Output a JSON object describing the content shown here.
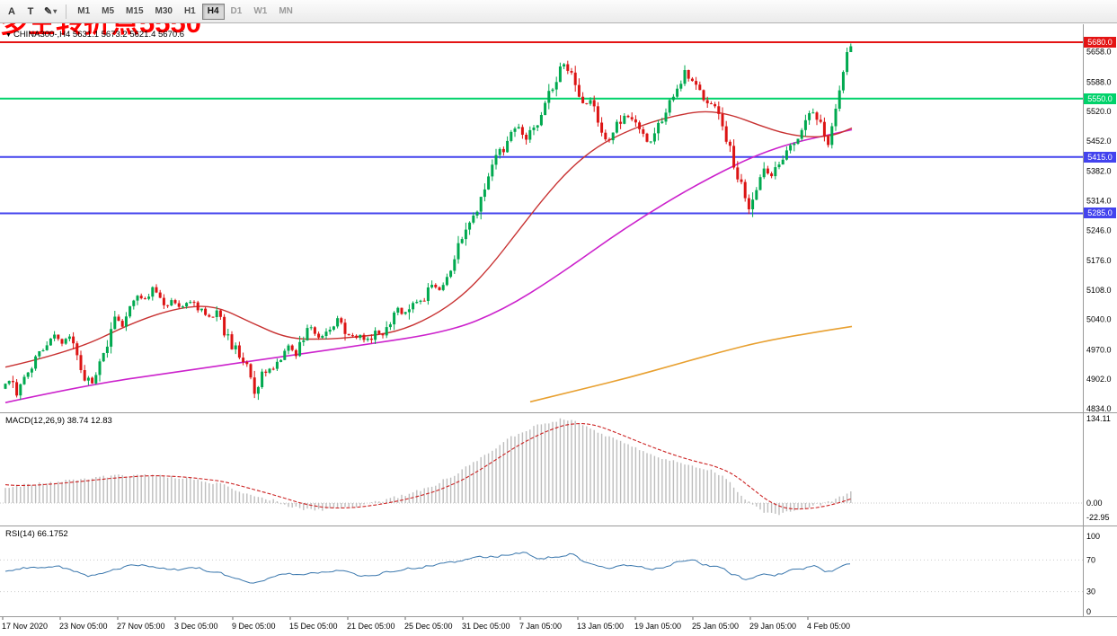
{
  "toolbar": {
    "buttons": [
      {
        "label": "A"
      },
      {
        "label": "T"
      },
      {
        "label": "✎",
        "caret": "▾"
      }
    ],
    "timeframes": [
      {
        "label": "M1",
        "active": false
      },
      {
        "label": "M5",
        "active": false
      },
      {
        "label": "M15",
        "active": false
      },
      {
        "label": "M30",
        "active": false
      },
      {
        "label": "H1",
        "active": false
      },
      {
        "label": "H4",
        "active": true
      },
      {
        "label": "D1",
        "active": false
      },
      {
        "label": "W1",
        "active": false
      },
      {
        "label": "MN",
        "active": false
      }
    ]
  },
  "chart": {
    "symbol_dropdown_icon": "▼",
    "symbol_line": "CHINA300-,H4 5631.1 5673.2 5621.4 5670.6",
    "annotation": {
      "text": "多空转折点5550",
      "color": "#ff0000"
    },
    "levels": [
      {
        "label": "5680.0",
        "price": 5680.0,
        "color": "#e41414",
        "width": 2
      },
      {
        "label": "5550.0",
        "price": 5550.0,
        "color": "#00d26a",
        "width": 2
      },
      {
        "label": "5415.0",
        "price": 5415.0,
        "color": "#4343ee",
        "width": 2
      },
      {
        "label": "5285.0",
        "price": 5285.0,
        "color": "#4343ee",
        "width": 2
      }
    ],
    "y_ticks": [
      "5658.0",
      "5588.0",
      "5520.0",
      "5452.0",
      "5382.0",
      "5314.0",
      "5246.0",
      "5176.0",
      "5108.0",
      "5040.0",
      "4970.0",
      "4902.0",
      "4834.0"
    ],
    "x_ticks": [
      "17 Nov 2020",
      "23 Nov 05:00",
      "27 Nov 05:00",
      "3 Dec 05:00",
      "9 Dec 05:00",
      "15 Dec 05:00",
      "21 Dec 05:00",
      "25 Dec 05:00",
      "31 Dec 05:00",
      "7 Jan 05:00",
      "13 Jan 05:00",
      "19 Jan 05:00",
      "25 Jan 05:00",
      "29 Jan 05:00",
      "4 Feb 05:00"
    ]
  },
  "indicators": {
    "macd": {
      "label": "MACD(12,26,9) 38.74 12.83",
      "y_ticks": [
        "134.11",
        "0.00",
        "-22.95"
      ]
    },
    "rsi": {
      "label": "RSI(14) 66.1752",
      "y_ticks": [
        "100",
        "70",
        "30",
        "0"
      ]
    }
  },
  "chart_data": {
    "type": "candlestick",
    "symbol": "CHINA300-",
    "timeframe": "H4",
    "current_bar": {
      "open": 5631.1,
      "high": 5673.2,
      "low": 5621.4,
      "close": 5670.6
    },
    "price_axis_range": [
      4834,
      5680
    ],
    "horizontal_levels": [
      5680,
      5550,
      5415,
      5285
    ],
    "colors": {
      "bull": "#00a94f",
      "bear": "#dc1414",
      "ma_fast": "#c83232",
      "ma_slow": "#cc22cc",
      "ma_long": "#e8a030",
      "macd_hist": "#bdbdbd",
      "macd_signal": "#cc2222",
      "rsi_line": "#3a77ad",
      "axis_text": "#000000",
      "grid": "#9a9a9a"
    },
    "price_path": [
      [
        6,
        4880
      ],
      [
        14,
        4908
      ],
      [
        22,
        4868
      ],
      [
        34,
        4915
      ],
      [
        46,
        4958
      ],
      [
        58,
        4988
      ],
      [
        66,
        5002
      ],
      [
        74,
        4986
      ],
      [
        82,
        4996
      ],
      [
        90,
        4948
      ],
      [
        98,
        4910
      ],
      [
        106,
        4893
      ],
      [
        116,
        4940
      ],
      [
        126,
        5000
      ],
      [
        134,
        5048
      ],
      [
        142,
        5025
      ],
      [
        150,
        5068
      ],
      [
        158,
        5092
      ],
      [
        166,
        5086
      ],
      [
        174,
        5106
      ],
      [
        182,
        5088
      ],
      [
        190,
        5074
      ],
      [
        198,
        5082
      ],
      [
        206,
        5070
      ],
      [
        214,
        5086
      ],
      [
        222,
        5072
      ],
      [
        230,
        5060
      ],
      [
        238,
        5042
      ],
      [
        246,
        5056
      ],
      [
        254,
        5012
      ],
      [
        262,
        4982
      ],
      [
        270,
        4962
      ],
      [
        278,
        4938
      ],
      [
        286,
        4872
      ],
      [
        294,
        4906
      ],
      [
        302,
        4926
      ],
      [
        310,
        4930
      ],
      [
        318,
        4956
      ],
      [
        326,
        4976
      ],
      [
        334,
        4960
      ],
      [
        342,
        4996
      ],
      [
        350,
        5022
      ],
      [
        358,
        5000
      ],
      [
        366,
        5012
      ],
      [
        374,
        5026
      ],
      [
        382,
        5042
      ],
      [
        390,
        5012
      ],
      [
        398,
        4996
      ],
      [
        406,
        5002
      ],
      [
        414,
        4990
      ],
      [
        422,
        5012
      ],
      [
        430,
        5002
      ],
      [
        438,
        5032
      ],
      [
        446,
        5062
      ],
      [
        454,
        5050
      ],
      [
        462,
        5086
      ],
      [
        470,
        5072
      ],
      [
        478,
        5096
      ],
      [
        486,
        5122
      ],
      [
        494,
        5112
      ],
      [
        502,
        5142
      ],
      [
        510,
        5182
      ],
      [
        518,
        5232
      ],
      [
        526,
        5272
      ],
      [
        534,
        5288
      ],
      [
        542,
        5332
      ],
      [
        550,
        5396
      ],
      [
        558,
        5442
      ],
      [
        566,
        5430
      ],
      [
        574,
        5472
      ],
      [
        582,
        5492
      ],
      [
        590,
        5452
      ],
      [
        598,
        5482
      ],
      [
        606,
        5512
      ],
      [
        614,
        5556
      ],
      [
        622,
        5592
      ],
      [
        630,
        5628
      ],
      [
        638,
        5612
      ],
      [
        646,
        5566
      ],
      [
        654,
        5532
      ],
      [
        662,
        5546
      ],
      [
        670,
        5496
      ],
      [
        678,
        5452
      ],
      [
        686,
        5462
      ],
      [
        694,
        5502
      ],
      [
        702,
        5512
      ],
      [
        710,
        5492
      ],
      [
        718,
        5470
      ],
      [
        726,
        5446
      ],
      [
        734,
        5472
      ],
      [
        742,
        5512
      ],
      [
        750,
        5546
      ],
      [
        758,
        5572
      ],
      [
        766,
        5606
      ],
      [
        774,
        5592
      ],
      [
        782,
        5562
      ],
      [
        790,
        5532
      ],
      [
        798,
        5536
      ],
      [
        806,
        5502
      ],
      [
        814,
        5452
      ],
      [
        822,
        5396
      ],
      [
        830,
        5346
      ],
      [
        838,
        5298
      ],
      [
        846,
        5352
      ],
      [
        854,
        5386
      ],
      [
        862,
        5372
      ],
      [
        870,
        5402
      ],
      [
        878,
        5422
      ],
      [
        886,
        5442
      ],
      [
        894,
        5472
      ],
      [
        902,
        5502
      ],
      [
        910,
        5526
      ],
      [
        918,
        5482
      ],
      [
        926,
        5452
      ],
      [
        934,
        5512
      ],
      [
        940,
        5592
      ],
      [
        946,
        5668
      ]
    ],
    "ma_fast_red": [
      [
        6,
        4930
      ],
      [
        80,
        4965
      ],
      [
        150,
        5035
      ],
      [
        200,
        5068
      ],
      [
        240,
        5072
      ],
      [
        280,
        5032
      ],
      [
        320,
        4996
      ],
      [
        360,
        4994
      ],
      [
        400,
        5000
      ],
      [
        440,
        5010
      ],
      [
        480,
        5045
      ],
      [
        515,
        5095
      ],
      [
        545,
        5160
      ],
      [
        575,
        5240
      ],
      [
        605,
        5320
      ],
      [
        635,
        5390
      ],
      [
        665,
        5440
      ],
      [
        695,
        5472
      ],
      [
        725,
        5496
      ],
      [
        755,
        5512
      ],
      [
        785,
        5522
      ],
      [
        815,
        5512
      ],
      [
        845,
        5488
      ],
      [
        875,
        5468
      ],
      [
        905,
        5460
      ],
      [
        930,
        5466
      ],
      [
        948,
        5482
      ]
    ],
    "ma_slow_magenta": [
      [
        6,
        4848
      ],
      [
        100,
        4890
      ],
      [
        200,
        4920
      ],
      [
        300,
        4950
      ],
      [
        400,
        4980
      ],
      [
        500,
        5012
      ],
      [
        560,
        5062
      ],
      [
        620,
        5140
      ],
      [
        700,
        5258
      ],
      [
        780,
        5358
      ],
      [
        860,
        5438
      ],
      [
        948,
        5478
      ]
    ],
    "ma_long_orange": [
      [
        590,
        4850
      ],
      [
        650,
        4880
      ],
      [
        700,
        4906
      ],
      [
        750,
        4935
      ],
      [
        800,
        4964
      ],
      [
        850,
        4990
      ],
      [
        900,
        5008
      ],
      [
        948,
        5024
      ]
    ],
    "macd_main": [
      [
        6,
        25
      ],
      [
        40,
        30
      ],
      [
        80,
        36
      ],
      [
        120,
        42
      ],
      [
        160,
        45
      ],
      [
        200,
        40
      ],
      [
        240,
        32
      ],
      [
        270,
        18
      ],
      [
        300,
        6
      ],
      [
        330,
        -8
      ],
      [
        360,
        -11
      ],
      [
        390,
        -6
      ],
      [
        420,
        2
      ],
      [
        450,
        12
      ],
      [
        480,
        26
      ],
      [
        510,
        48
      ],
      [
        540,
        78
      ],
      [
        570,
        106
      ],
      [
        600,
        124
      ],
      [
        625,
        133
      ],
      [
        650,
        126
      ],
      [
        680,
        103
      ],
      [
        710,
        85
      ],
      [
        740,
        70
      ],
      [
        760,
        62
      ],
      [
        790,
        53
      ],
      [
        810,
        36
      ],
      [
        830,
        6
      ],
      [
        850,
        -16
      ],
      [
        870,
        -18
      ],
      [
        890,
        -9
      ],
      [
        910,
        -3
      ],
      [
        930,
        7
      ],
      [
        946,
        17
      ]
    ],
    "rsi": [
      [
        6,
        55
      ],
      [
        30,
        60
      ],
      [
        60,
        63
      ],
      [
        80,
        58
      ],
      [
        100,
        50
      ],
      [
        120,
        55
      ],
      [
        140,
        62
      ],
      [
        160,
        64
      ],
      [
        180,
        60
      ],
      [
        200,
        58
      ],
      [
        220,
        60
      ],
      [
        240,
        55
      ],
      [
        260,
        48
      ],
      [
        280,
        42
      ],
      [
        300,
        47
      ],
      [
        320,
        52
      ],
      [
        340,
        50
      ],
      [
        360,
        55
      ],
      [
        380,
        58
      ],
      [
        400,
        50
      ],
      [
        420,
        53
      ],
      [
        440,
        57
      ],
      [
        460,
        60
      ],
      [
        480,
        63
      ],
      [
        500,
        66
      ],
      [
        520,
        70
      ],
      [
        540,
        74
      ],
      [
        560,
        76
      ],
      [
        580,
        80
      ],
      [
        600,
        72
      ],
      [
        620,
        75
      ],
      [
        635,
        78
      ],
      [
        650,
        68
      ],
      [
        665,
        63
      ],
      [
        680,
        58
      ],
      [
        695,
        64
      ],
      [
        710,
        62
      ],
      [
        725,
        57
      ],
      [
        740,
        62
      ],
      [
        755,
        68
      ],
      [
        770,
        70
      ],
      [
        785,
        64
      ],
      [
        800,
        60
      ],
      [
        815,
        52
      ],
      [
        830,
        45
      ],
      [
        845,
        52
      ],
      [
        860,
        50
      ],
      [
        875,
        55
      ],
      [
        890,
        58
      ],
      [
        905,
        62
      ],
      [
        918,
        56
      ],
      [
        930,
        58
      ],
      [
        946,
        66
      ]
    ]
  }
}
